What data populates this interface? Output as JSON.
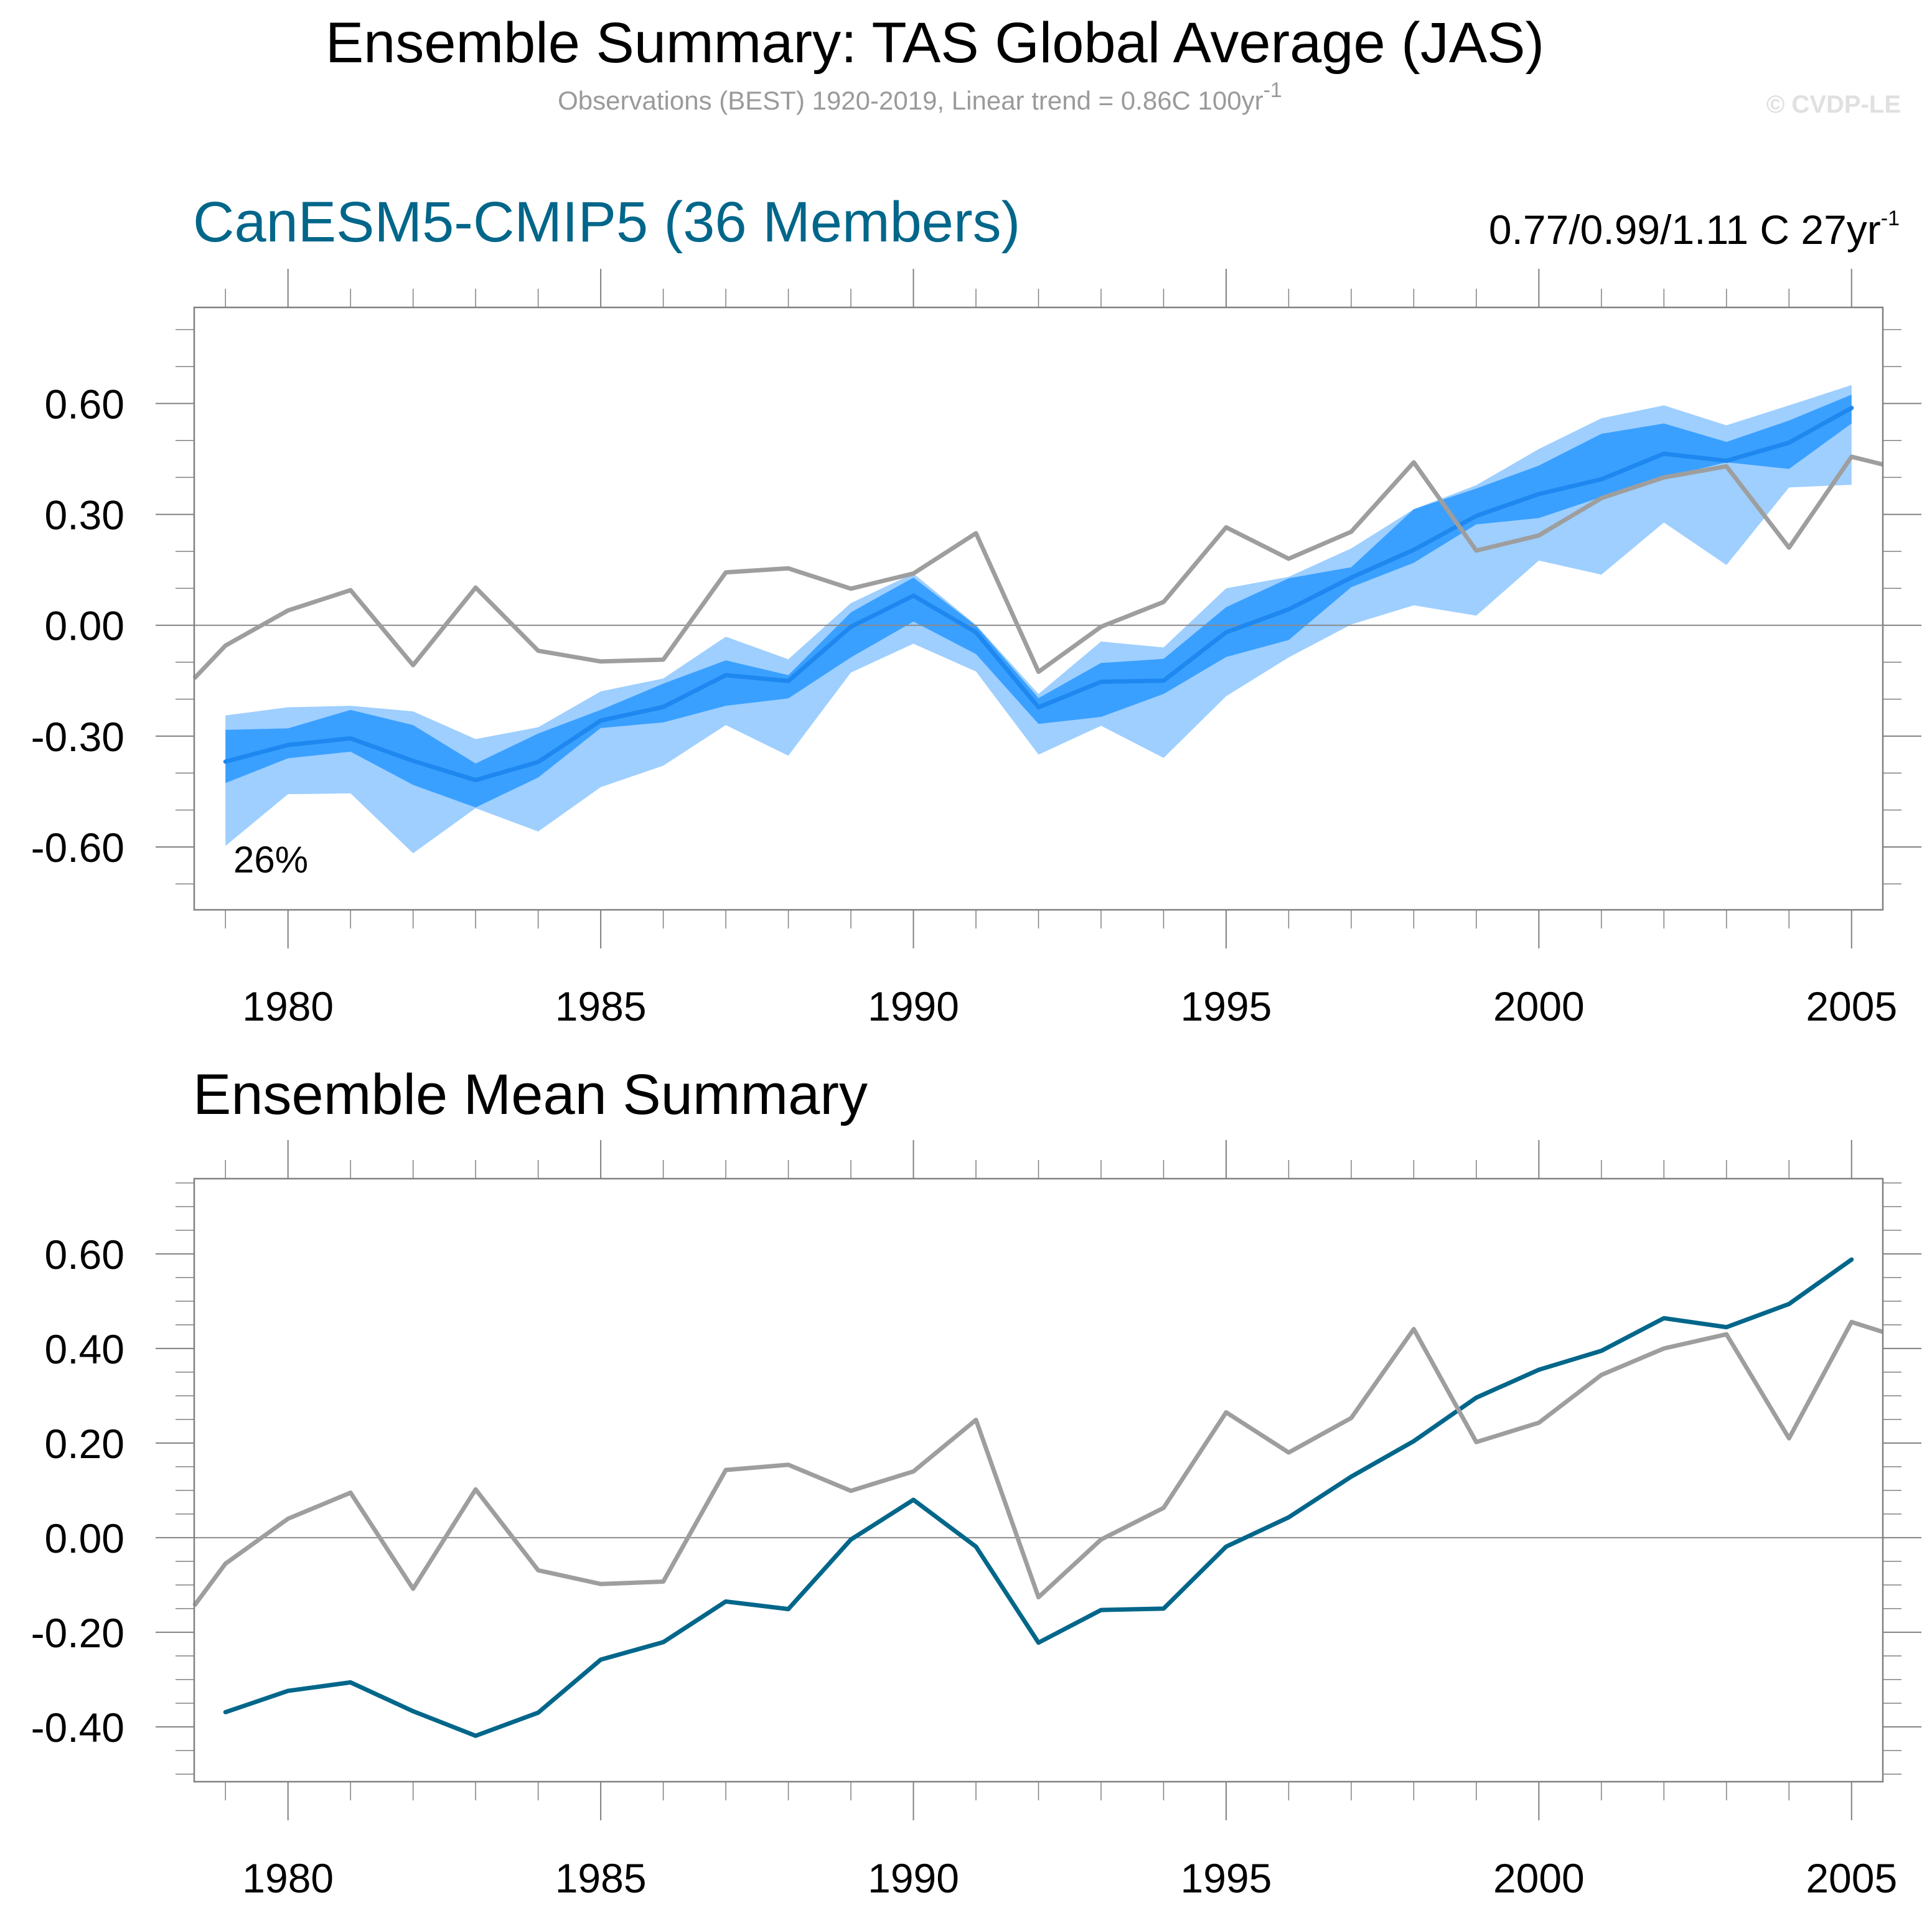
{
  "header": {
    "title": "Ensemble Summary: TAS Global Average (JAS)",
    "subtitle": "Observations (BEST) 1920-2019, Linear trend = 0.86C 100yr",
    "subtitle_sup": "-1",
    "copyright": "© CVDP-LE"
  },
  "colors": {
    "obs": "#9e9e9e",
    "band_outer": "#9ecfff",
    "band_inner": "#3aa0ff",
    "ens_mean_top": "#1e88f0",
    "ens_mean_bottom": "#00668a",
    "model_title": "#00668a",
    "axis": "#808080",
    "copyright": "#e0e0e0"
  },
  "chart_data": [
    {
      "type": "area",
      "title": "CanESM5-CMIP5 (36 Members)",
      "trend_label": "0.77/0.99/1.11 C 27yr",
      "trend_sup": "-1",
      "percent_label": "26%",
      "xlabel": "",
      "ylabel": "",
      "xlim": [
        1978.5,
        2005.5
      ],
      "ylim": [
        -0.77,
        0.86
      ],
      "xticks_major": [
        1980,
        1985,
        1990,
        1995,
        2000,
        2005
      ],
      "xtick_labels": [
        "1980",
        "1985",
        "1990",
        "1995",
        "2000",
        "2005"
      ],
      "yticks_major": [
        0.6,
        0.3,
        0.0,
        -0.3,
        -0.6
      ],
      "ytick_labels": [
        "0.60",
        "0.30",
        "0.00",
        "-0.30",
        "-0.60"
      ],
      "ytick_minor_step": 0.1,
      "zero_line": true,
      "x": [
        1979,
        1980,
        1981,
        1982,
        1983,
        1984,
        1985,
        1986,
        1987,
        1988,
        1989,
        1990,
        1991,
        1992,
        1993,
        1994,
        1995,
        1996,
        1997,
        1998,
        1999,
        2000,
        2001,
        2002,
        2003,
        2004,
        2005
      ],
      "series": [
        {
          "name": "ensemble range upper",
          "role": "outer_upper",
          "values": [
            -0.244,
            -0.222,
            -0.218,
            -0.233,
            -0.308,
            -0.276,
            -0.179,
            -0.144,
            -0.031,
            -0.092,
            0.06,
            0.14,
            0.001,
            -0.186,
            -0.044,
            -0.06,
            0.1,
            0.131,
            0.208,
            0.314,
            0.379,
            0.477,
            0.56,
            0.595,
            0.541,
            0.595,
            0.65
          ]
        },
        {
          "name": "ensemble range lower",
          "role": "outer_lower",
          "values": [
            -0.597,
            -0.457,
            -0.455,
            -0.617,
            -0.495,
            -0.558,
            -0.438,
            -0.38,
            -0.27,
            -0.353,
            -0.128,
            -0.05,
            -0.125,
            -0.35,
            -0.272,
            -0.359,
            -0.192,
            -0.087,
            0.002,
            0.054,
            0.026,
            0.175,
            0.137,
            0.278,
            0.163,
            0.373,
            0.38
          ]
        },
        {
          "name": "inner range upper",
          "role": "inner_upper",
          "values": [
            -0.283,
            -0.279,
            -0.229,
            -0.27,
            -0.374,
            -0.293,
            -0.229,
            -0.158,
            -0.095,
            -0.135,
            0.035,
            0.129,
            -0.001,
            -0.197,
            -0.102,
            -0.091,
            0.049,
            0.127,
            0.157,
            0.314,
            0.37,
            0.432,
            0.518,
            0.546,
            0.496,
            0.554,
            0.624
          ]
        },
        {
          "name": "inner range lower",
          "role": "inner_lower",
          "values": [
            -0.427,
            -0.36,
            -0.342,
            -0.432,
            -0.493,
            -0.412,
            -0.278,
            -0.263,
            -0.218,
            -0.198,
            -0.087,
            0.01,
            -0.078,
            -0.267,
            -0.248,
            -0.186,
            -0.086,
            -0.04,
            0.103,
            0.169,
            0.273,
            0.29,
            0.347,
            0.4,
            0.441,
            0.423,
            0.546
          ]
        },
        {
          "name": "ensemble mean",
          "role": "mean",
          "values": [
            -0.369,
            -0.324,
            -0.306,
            -0.367,
            -0.419,
            -0.37,
            -0.258,
            -0.221,
            -0.135,
            -0.151,
            -0.004,
            0.08,
            -0.019,
            -0.222,
            -0.153,
            -0.15,
            -0.019,
            0.043,
            0.129,
            0.204,
            0.296,
            0.355,
            0.395,
            0.464,
            0.445,
            0.494,
            0.588
          ]
        }
      ],
      "observations": {
        "name": "Observations (BEST)",
        "x": [
          1978.5,
          1979,
          1980,
          1981,
          1982,
          1983,
          1984,
          1985,
          1986,
          1987,
          1988,
          1989,
          1990,
          1991,
          1992,
          1993,
          1994,
          1995,
          1996,
          1997,
          1998,
          1999,
          2000,
          2001,
          2002,
          2003,
          2004,
          2005,
          2005.5
        ],
        "values": [
          -0.144,
          -0.055,
          0.04,
          0.095,
          -0.108,
          0.102,
          -0.069,
          -0.098,
          -0.093,
          0.143,
          0.154,
          0.099,
          0.14,
          0.249,
          -0.126,
          -0.004,
          0.063,
          0.265,
          0.18,
          0.253,
          0.441,
          0.202,
          0.243,
          0.344,
          0.4,
          0.43,
          0.21,
          0.456,
          0.435
        ]
      }
    },
    {
      "type": "line",
      "title": "Ensemble Mean Summary",
      "xlabel": "",
      "ylabel": "",
      "xlim": [
        1978.5,
        2005.5
      ],
      "ylim": [
        -0.516,
        0.759
      ],
      "xticks_major": [
        1980,
        1985,
        1990,
        1995,
        2000,
        2005
      ],
      "xtick_labels": [
        "1980",
        "1985",
        "1990",
        "1995",
        "2000",
        "2005"
      ],
      "yticks_major": [
        0.6,
        0.4,
        0.2,
        0.0,
        -0.2,
        -0.4
      ],
      "ytick_labels": [
        "0.60",
        "0.40",
        "0.20",
        "0.00",
        "-0.20",
        "-0.40"
      ],
      "ytick_minor_step": 0.05,
      "zero_line": true,
      "series": [
        {
          "name": "CanESM5-CMIP5 ensemble mean",
          "x": [
            1979,
            1980,
            1981,
            1982,
            1983,
            1984,
            1985,
            1986,
            1987,
            1988,
            1989,
            1990,
            1991,
            1992,
            1993,
            1994,
            1995,
            1996,
            1997,
            1998,
            1999,
            2000,
            2001,
            2002,
            2003,
            2004,
            2005
          ],
          "values": [
            -0.369,
            -0.324,
            -0.306,
            -0.367,
            -0.419,
            -0.37,
            -0.258,
            -0.221,
            -0.135,
            -0.151,
            -0.004,
            0.08,
            -0.019,
            -0.222,
            -0.153,
            -0.15,
            -0.019,
            0.043,
            0.129,
            0.204,
            0.296,
            0.355,
            0.395,
            0.464,
            0.445,
            0.494,
            0.588
          ]
        },
        {
          "name": "Observations (BEST)",
          "x": [
            1978.5,
            1979,
            1980,
            1981,
            1982,
            1983,
            1984,
            1985,
            1986,
            1987,
            1988,
            1989,
            1990,
            1991,
            1992,
            1993,
            1994,
            1995,
            1996,
            1997,
            1998,
            1999,
            2000,
            2001,
            2002,
            2003,
            2004,
            2005,
            2005.5
          ],
          "values": [
            -0.144,
            -0.055,
            0.04,
            0.095,
            -0.108,
            0.102,
            -0.069,
            -0.098,
            -0.093,
            0.143,
            0.154,
            0.099,
            0.14,
            0.249,
            -0.126,
            -0.004,
            0.063,
            0.265,
            0.18,
            0.253,
            0.441,
            0.202,
            0.243,
            0.344,
            0.4,
            0.43,
            0.21,
            0.456,
            0.435
          ]
        }
      ]
    }
  ]
}
